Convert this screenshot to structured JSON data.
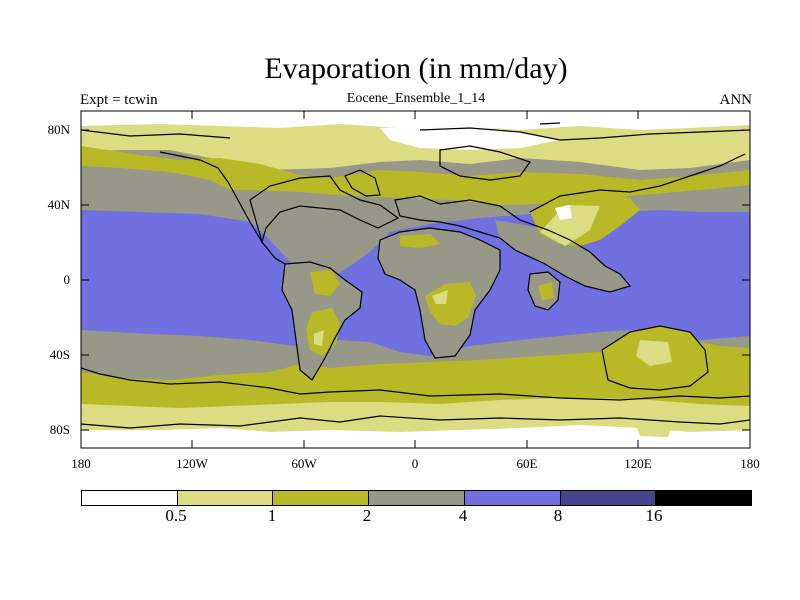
{
  "title": "Evaporation (in mm/day)",
  "left_string": "Expt = tcwin",
  "center_string": "Eocene_Ensemble_1_14",
  "right_string": "ANN",
  "lat_labels": [
    "80N",
    "40N",
    "0",
    "40S",
    "80S"
  ],
  "lon_labels": [
    "180",
    "120W",
    "60W",
    "0",
    "60E",
    "120E",
    "180"
  ],
  "colorbar": {
    "levels": [
      "0.5",
      "1",
      "2",
      "4",
      "8",
      "16"
    ],
    "colors": [
      "#ffffff",
      "#dcdc82",
      "#b9b928",
      "#989888",
      "#7070e0",
      "#45458f",
      "#000000"
    ]
  }
}
